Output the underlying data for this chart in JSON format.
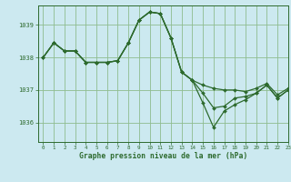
{
  "title": "Graphe pression niveau de la mer (hPa)",
  "background_color": "#cce9f0",
  "line_color": "#2d6a2d",
  "grid_color": "#8fbc8f",
  "xlim": [
    -0.5,
    23
  ],
  "ylim": [
    1035.4,
    1039.6
  ],
  "yticks": [
    1036,
    1037,
    1038,
    1039
  ],
  "xticks": [
    0,
    1,
    2,
    3,
    4,
    5,
    6,
    7,
    8,
    9,
    10,
    11,
    12,
    13,
    14,
    15,
    16,
    17,
    18,
    19,
    20,
    21,
    22,
    23
  ],
  "series": [
    {
      "x": [
        0,
        1,
        2,
        3,
        4,
        5,
        6,
        7,
        8,
        9,
        10,
        11,
        12,
        13,
        14,
        15,
        16,
        17,
        18,
        19,
        20,
        21,
        22,
        23
      ],
      "y": [
        1038.0,
        1038.45,
        1038.2,
        1038.2,
        1037.85,
        1037.85,
        1037.85,
        1037.9,
        1038.45,
        1039.15,
        1039.4,
        1039.35,
        1038.6,
        1037.55,
        1037.3,
        1036.6,
        1035.85,
        1036.35,
        1036.55,
        1036.7,
        1036.9,
        1037.15,
        1036.75,
        1037.0
      ]
    },
    {
      "x": [
        0,
        1,
        2,
        3,
        4,
        5,
        6,
        7,
        8,
        9,
        10,
        11,
        12,
        13,
        14,
        15,
        16,
        17,
        18,
        19,
        20,
        21,
        22,
        23
      ],
      "y": [
        1038.0,
        1038.45,
        1038.2,
        1038.2,
        1037.85,
        1037.85,
        1037.85,
        1037.9,
        1038.45,
        1039.15,
        1039.4,
        1039.35,
        1038.6,
        1037.55,
        1037.3,
        1036.9,
        1036.45,
        1036.5,
        1036.75,
        1036.8,
        1036.9,
        1037.15,
        1036.75,
        1037.0
      ]
    },
    {
      "x": [
        0,
        1,
        2,
        3,
        4,
        5,
        6,
        7,
        8,
        9,
        10,
        11,
        12,
        13,
        14,
        15,
        16,
        17,
        18,
        19,
        20,
        21,
        22,
        23
      ],
      "y": [
        1038.0,
        1038.45,
        1038.2,
        1038.2,
        1037.85,
        1037.85,
        1037.85,
        1037.9,
        1038.45,
        1039.15,
        1039.4,
        1039.35,
        1038.6,
        1037.55,
        1037.3,
        1037.15,
        1037.05,
        1037.0,
        1037.0,
        1036.95,
        1037.05,
        1037.2,
        1036.85,
        1037.05
      ]
    }
  ]
}
